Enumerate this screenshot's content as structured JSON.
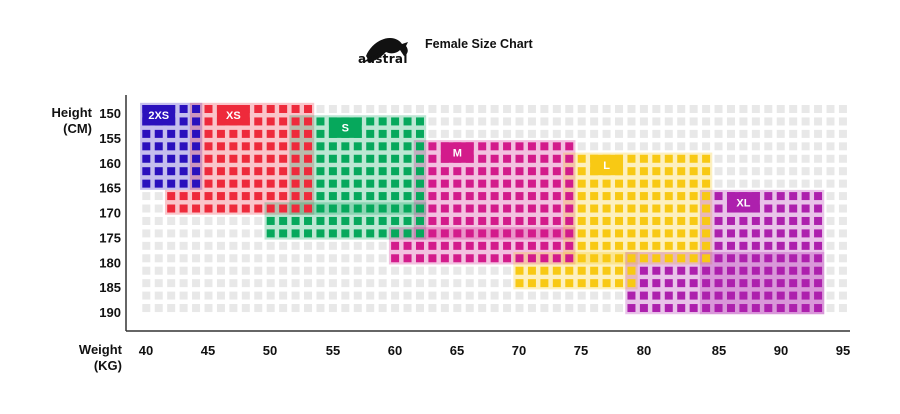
{
  "header": {
    "title": "Female Size Chart",
    "logo_text": "austral"
  },
  "chart_data": {
    "type": "heatmap",
    "title": "Female Size Chart",
    "xlabel": [
      "Weight",
      "(KG)"
    ],
    "ylabel": [
      "Height",
      "(CM)"
    ],
    "x_ticks": [
      40,
      45,
      50,
      55,
      60,
      65,
      70,
      75,
      80,
      85,
      90,
      95
    ],
    "y_ticks": [
      150,
      155,
      160,
      165,
      170,
      175,
      180,
      185,
      190
    ],
    "x_range_kg": [
      40,
      96
    ],
    "y_range_cm": [
      150,
      190
    ],
    "empty_cell_color": "#e8e8e8",
    "sizes": [
      {
        "label": "2XS",
        "color": "#2a10bd",
        "blocks": [
          {
            "weight_kg": [
              40,
              44
            ],
            "height_cm": [
              150,
              165
            ]
          }
        ]
      },
      {
        "label": "XS",
        "color": "#ee2a3b",
        "blocks": [
          {
            "weight_kg": [
              44,
              53
            ],
            "height_cm": [
              150,
              165
            ]
          },
          {
            "weight_kg": [
              42,
              53
            ],
            "height_cm": [
              167.5,
              170
            ]
          }
        ]
      },
      {
        "label": "S",
        "color": "#06a85c",
        "blocks": [
          {
            "weight_kg": [
              52,
              62
            ],
            "height_cm": [
              152.5,
              170
            ]
          },
          {
            "weight_kg": [
              50,
              62
            ],
            "height_cm": [
              170,
              175
            ]
          }
        ]
      },
      {
        "label": "M",
        "color": "#d31b8b",
        "blocks": [
          {
            "weight_kg": [
              62,
              74
            ],
            "height_cm": [
              157.5,
              175
            ]
          },
          {
            "weight_kg": [
              60,
              74
            ],
            "height_cm": [
              175,
              180
            ]
          }
        ]
      },
      {
        "label": "L",
        "color": "#f8c914",
        "blocks": [
          {
            "weight_kg": [
              74,
              85
            ],
            "height_cm": [
              160,
              180
            ]
          },
          {
            "weight_kg": [
              70,
              79
            ],
            "height_cm": [
              180,
              185
            ]
          }
        ]
      },
      {
        "label": "XL",
        "color": "#ad20ad",
        "blocks": [
          {
            "weight_kg": [
              85,
              94
            ],
            "height_cm": [
              167.5,
              190
            ]
          },
          {
            "weight_kg": [
              79,
              94
            ],
            "height_cm": [
              180,
              190
            ]
          }
        ]
      }
    ]
  }
}
